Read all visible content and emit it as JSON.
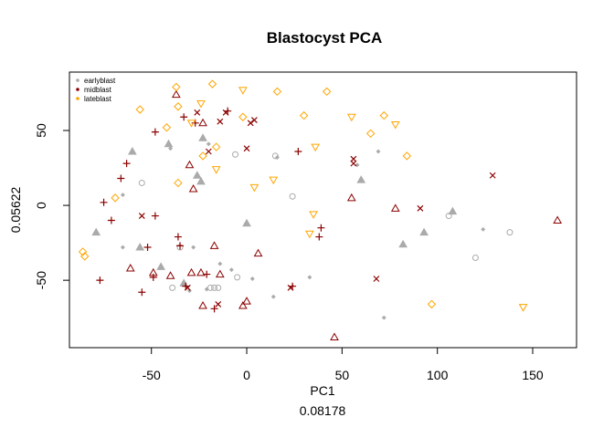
{
  "chart_data": {
    "type": "scatter",
    "title": "Blastocyst PCA",
    "xlabel": "PC1",
    "xlabel_sub": "0.08178",
    "ylabel": "0.05622",
    "xlim": [
      -93,
      173
    ],
    "ylim": [
      -95,
      89
    ],
    "xticks": [
      -50,
      0,
      50,
      100,
      150
    ],
    "yticks": [
      -50,
      0,
      50
    ],
    "xtick_labels": [
      "-50",
      "0",
      "50",
      "100",
      "150"
    ],
    "ytick_labels": [
      "-50",
      "0",
      "50"
    ],
    "legend": {
      "position": "top-left",
      "entries": [
        {
          "label": "earlyblast",
          "color": "#AAAAAA"
        },
        {
          "label": "midblast",
          "color": "#8B0000"
        },
        {
          "label": "lateblast",
          "color": "#FFA500"
        }
      ]
    },
    "series": [
      {
        "name": "earlyblast",
        "color": "#AAAAAA",
        "points": [
          {
            "x": -79,
            "y": -18,
            "shape": "triangle"
          },
          {
            "x": -65,
            "y": 7,
            "shape": "diamond"
          },
          {
            "x": -65,
            "y": -28,
            "shape": "diamond"
          },
          {
            "x": -60,
            "y": 36,
            "shape": "triangle"
          },
          {
            "x": -55,
            "y": 15,
            "shape": "circle"
          },
          {
            "x": -56,
            "y": -28,
            "shape": "triangle"
          },
          {
            "x": -45,
            "y": -41,
            "shape": "triangle"
          },
          {
            "x": -41,
            "y": 41,
            "shape": "triangle"
          },
          {
            "x": -40,
            "y": 38,
            "shape": "diamond"
          },
          {
            "x": -39,
            "y": -55,
            "shape": "circle"
          },
          {
            "x": -35,
            "y": -28,
            "shape": "circle"
          },
          {
            "x": -33,
            "y": -52,
            "shape": "triangle"
          },
          {
            "x": -30,
            "y": -57,
            "shape": "diamond"
          },
          {
            "x": -28,
            "y": -28,
            "shape": "diamond"
          },
          {
            "x": -26,
            "y": 20,
            "shape": "triangle"
          },
          {
            "x": -24,
            "y": 16,
            "shape": "triangle"
          },
          {
            "x": -23,
            "y": 45,
            "shape": "triangle"
          },
          {
            "x": -21,
            "y": -56,
            "shape": "diamond"
          },
          {
            "x": -20,
            "y": 41,
            "shape": "diamond"
          },
          {
            "x": -19,
            "y": -55,
            "shape": "circle"
          },
          {
            "x": -17,
            "y": -55,
            "shape": "circle"
          },
          {
            "x": -15,
            "y": -55,
            "shape": "circle"
          },
          {
            "x": -14,
            "y": -39,
            "shape": "diamond"
          },
          {
            "x": -8,
            "y": -43,
            "shape": "diamond"
          },
          {
            "x": -6,
            "y": 34,
            "shape": "circle"
          },
          {
            "x": -5,
            "y": -48,
            "shape": "circle"
          },
          {
            "x": 0,
            "y": -12,
            "shape": "triangle"
          },
          {
            "x": 3,
            "y": -49,
            "shape": "diamond"
          },
          {
            "x": 14,
            "y": -61,
            "shape": "diamond"
          },
          {
            "x": 15,
            "y": 33,
            "shape": "circle"
          },
          {
            "x": 16,
            "y": 32,
            "shape": "diamond"
          },
          {
            "x": 24,
            "y": 6,
            "shape": "circle"
          },
          {
            "x": 33,
            "y": -48,
            "shape": "diamond"
          },
          {
            "x": 58,
            "y": 27,
            "shape": "diamond"
          },
          {
            "x": 60,
            "y": 17,
            "shape": "triangle"
          },
          {
            "x": 69,
            "y": 36,
            "shape": "diamond"
          },
          {
            "x": 72,
            "y": -75,
            "shape": "diamond"
          },
          {
            "x": 82,
            "y": -26,
            "shape": "triangle"
          },
          {
            "x": 93,
            "y": -18,
            "shape": "triangle"
          },
          {
            "x": 106,
            "y": -7,
            "shape": "circle"
          },
          {
            "x": 108,
            "y": -4,
            "shape": "triangle"
          },
          {
            "x": 120,
            "y": -35,
            "shape": "circle"
          },
          {
            "x": 124,
            "y": -16,
            "shape": "diamond"
          },
          {
            "x": 138,
            "y": -18,
            "shape": "circle"
          }
        ]
      },
      {
        "name": "midblast",
        "color": "#8B0000",
        "points": [
          {
            "x": -77,
            "y": -50,
            "shape": "plus"
          },
          {
            "x": -75,
            "y": 2,
            "shape": "plus"
          },
          {
            "x": -71,
            "y": -10,
            "shape": "plus"
          },
          {
            "x": -66,
            "y": 18,
            "shape": "plus"
          },
          {
            "x": -63,
            "y": 28,
            "shape": "plus"
          },
          {
            "x": -61,
            "y": -42,
            "shape": "triangle"
          },
          {
            "x": -55,
            "y": -58,
            "shape": "plus"
          },
          {
            "x": -55,
            "y": -7,
            "shape": "cross"
          },
          {
            "x": -52,
            "y": -28,
            "shape": "plus"
          },
          {
            "x": -49,
            "y": -48,
            "shape": "plus"
          },
          {
            "x": -49,
            "y": -45,
            "shape": "triangle"
          },
          {
            "x": -48,
            "y": -7,
            "shape": "plus"
          },
          {
            "x": -48,
            "y": 49,
            "shape": "plus"
          },
          {
            "x": -40,
            "y": -47,
            "shape": "triangle"
          },
          {
            "x": -37,
            "y": 74,
            "shape": "triangle"
          },
          {
            "x": -36,
            "y": -21,
            "shape": "plus"
          },
          {
            "x": -35,
            "y": -27,
            "shape": "plus"
          },
          {
            "x": -33,
            "y": 59,
            "shape": "plus"
          },
          {
            "x": -32,
            "y": -54,
            "shape": "plus"
          },
          {
            "x": -31,
            "y": -55,
            "shape": "cross"
          },
          {
            "x": -30,
            "y": 27,
            "shape": "triangle"
          },
          {
            "x": -29,
            "y": -45,
            "shape": "triangle"
          },
          {
            "x": -28,
            "y": 11,
            "shape": "triangle"
          },
          {
            "x": -27,
            "y": 55,
            "shape": "plus"
          },
          {
            "x": -26,
            "y": 62,
            "shape": "cross"
          },
          {
            "x": -24,
            "y": -45,
            "shape": "triangle"
          },
          {
            "x": -23,
            "y": 55,
            "shape": "triangle"
          },
          {
            "x": -23,
            "y": -67,
            "shape": "triangle"
          },
          {
            "x": -21,
            "y": -46,
            "shape": "plus"
          },
          {
            "x": -20,
            "y": 36,
            "shape": "cross"
          },
          {
            "x": -17,
            "y": -27,
            "shape": "triangle"
          },
          {
            "x": -17,
            "y": -69,
            "shape": "plus"
          },
          {
            "x": -15,
            "y": -66,
            "shape": "cross"
          },
          {
            "x": -14,
            "y": 56,
            "shape": "cross"
          },
          {
            "x": -14,
            "y": -46,
            "shape": "triangle"
          },
          {
            "x": -11,
            "y": 62,
            "shape": "cross"
          },
          {
            "x": -10,
            "y": 63,
            "shape": "plus"
          },
          {
            "x": -2,
            "y": -67,
            "shape": "triangle"
          },
          {
            "x": 0,
            "y": -64,
            "shape": "triangle"
          },
          {
            "x": 0,
            "y": 38,
            "shape": "cross"
          },
          {
            "x": 2,
            "y": 55,
            "shape": "cross"
          },
          {
            "x": 4,
            "y": 57,
            "shape": "cross"
          },
          {
            "x": 6,
            "y": -32,
            "shape": "triangle"
          },
          {
            "x": 23,
            "y": -55,
            "shape": "cross"
          },
          {
            "x": 24,
            "y": -54,
            "shape": "plus"
          },
          {
            "x": 27,
            "y": 36,
            "shape": "plus"
          },
          {
            "x": 38,
            "y": -21,
            "shape": "plus"
          },
          {
            "x": 39,
            "y": -15,
            "shape": "plus"
          },
          {
            "x": 46,
            "y": -88,
            "shape": "triangle"
          },
          {
            "x": 55,
            "y": 5,
            "shape": "triangle"
          },
          {
            "x": 56,
            "y": 31,
            "shape": "cross"
          },
          {
            "x": 56,
            "y": 28,
            "shape": "cross"
          },
          {
            "x": 68,
            "y": -49,
            "shape": "cross"
          },
          {
            "x": 78,
            "y": -2,
            "shape": "triangle"
          },
          {
            "x": 91,
            "y": -2,
            "shape": "cross"
          },
          {
            "x": 129,
            "y": 20,
            "shape": "cross"
          },
          {
            "x": 163,
            "y": -10,
            "shape": "triangle"
          }
        ]
      },
      {
        "name": "lateblast",
        "color": "#FFA500",
        "points": [
          {
            "x": -86,
            "y": -31,
            "shape": "diamond"
          },
          {
            "x": -85,
            "y": -34,
            "shape": "diamond"
          },
          {
            "x": -69,
            "y": 5,
            "shape": "diamond"
          },
          {
            "x": -56,
            "y": 64,
            "shape": "diamond"
          },
          {
            "x": -42,
            "y": 52,
            "shape": "diamond"
          },
          {
            "x": -37,
            "y": 79,
            "shape": "diamond"
          },
          {
            "x": -36,
            "y": 66,
            "shape": "diamond"
          },
          {
            "x": -36,
            "y": 15,
            "shape": "diamond"
          },
          {
            "x": -29,
            "y": 55,
            "shape": "invtriangle"
          },
          {
            "x": -24,
            "y": 68,
            "shape": "invtriangle"
          },
          {
            "x": -23,
            "y": 33,
            "shape": "diamond"
          },
          {
            "x": -18,
            "y": 81,
            "shape": "diamond"
          },
          {
            "x": -16,
            "y": 24,
            "shape": "invtriangle"
          },
          {
            "x": -16,
            "y": 39,
            "shape": "diamond"
          },
          {
            "x": -2,
            "y": 59,
            "shape": "diamond"
          },
          {
            "x": -2,
            "y": 77,
            "shape": "invtriangle"
          },
          {
            "x": 4,
            "y": 12,
            "shape": "invtriangle"
          },
          {
            "x": 14,
            "y": 17,
            "shape": "invtriangle"
          },
          {
            "x": 16,
            "y": 76,
            "shape": "diamond"
          },
          {
            "x": 30,
            "y": 60,
            "shape": "diamond"
          },
          {
            "x": 33,
            "y": -19,
            "shape": "invtriangle"
          },
          {
            "x": 35,
            "y": -6,
            "shape": "invtriangle"
          },
          {
            "x": 36,
            "y": 39,
            "shape": "invtriangle"
          },
          {
            "x": 42,
            "y": 76,
            "shape": "diamond"
          },
          {
            "x": 55,
            "y": 59,
            "shape": "invtriangle"
          },
          {
            "x": 65,
            "y": 48,
            "shape": "diamond"
          },
          {
            "x": 72,
            "y": 60,
            "shape": "diamond"
          },
          {
            "x": 78,
            "y": 54,
            "shape": "invtriangle"
          },
          {
            "x": 84,
            "y": 33,
            "shape": "diamond"
          },
          {
            "x": 97,
            "y": -66,
            "shape": "diamond"
          },
          {
            "x": 145,
            "y": -68,
            "shape": "invtriangle"
          }
        ]
      }
    ]
  }
}
